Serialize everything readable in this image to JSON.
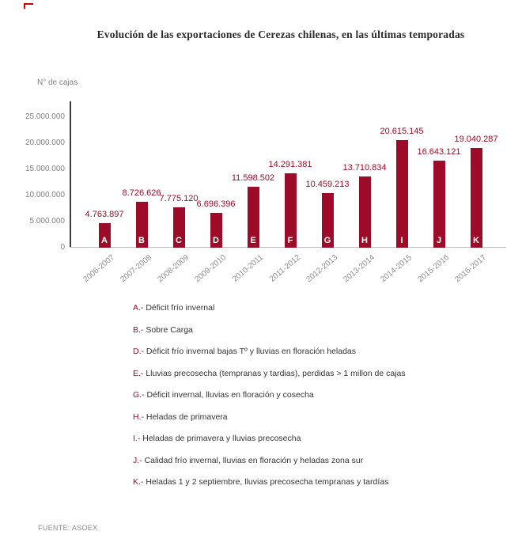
{
  "page": {
    "title": "Evolución de las exportaciones de Cerezas chilenas, en las últimas temporadas",
    "source": "FUENTE: ASOEX"
  },
  "colors": {
    "bar": "#9E0B28",
    "value_label": "#9E0B28",
    "legend_letter": "#9E0B28",
    "legend_text": "#333333",
    "axis_text": "#808080",
    "corner_mark": "#CC0000"
  },
  "chart_data": {
    "type": "bar",
    "title": "Evolución de las exportaciones de Cerezas chilenas, en las últimas temporadas",
    "xlabel": "",
    "ylabel": "N° de cajas",
    "ylim": [
      0,
      25000000
    ],
    "grid": false,
    "legend_position": "below",
    "categories": [
      "2006-2007",
      "2007-2008",
      "2008-2009",
      "2009-2010",
      "2010-2011",
      "2011-2012",
      "2012-2013",
      "2013-2014",
      "2014-2015",
      "2015-2016",
      "2016-2017"
    ],
    "values": [
      4763897,
      8726626,
      7775120,
      6696396,
      11598502,
      14291381,
      10459213,
      13710834,
      20615145,
      16643121,
      19040287
    ],
    "value_labels": [
      "4.763.897",
      "8.726.626",
      "7.775.120",
      "6.696.396",
      "11.598.502",
      "14.291.381",
      "10.459.213",
      "13.710.834",
      "20.615.145",
      "16.643.121",
      "19.040.287"
    ],
    "bar_letters": [
      "A",
      "B",
      "C",
      "D",
      "E",
      "F",
      "G",
      "H",
      "I",
      "J",
      "K"
    ],
    "ytick_values": [
      25000000,
      20000000,
      15000000,
      10000000,
      5000000,
      0
    ],
    "ytick_labels": [
      "25.000.000",
      "20.000.000",
      "15.000.000",
      "10.000.000",
      "5.000.000",
      "0"
    ]
  },
  "legend": {
    "items": [
      {
        "key": "A.-",
        "text": "Déficit frío invernal"
      },
      {
        "key": "B.-",
        "text": "Sobre Carga"
      },
      {
        "key": "D.-",
        "text": "Déficit frío invernal bajas Tº y lluvias en floración heladas"
      },
      {
        "key": "E.-",
        "text": "Lluvias precosecha (tempranas y tardias), perdidas > 1 millon de cajas"
      },
      {
        "key": "G.-",
        "text": "Déficit  invernal, lluvias en floración y cosecha"
      },
      {
        "key": "H.-",
        "text": "Heladas de primavera"
      },
      {
        "key": "I.-",
        "text": "Heladas de primavera y lluvias precosecha"
      },
      {
        "key": "J.-",
        "text": "Calidad frío invernal, lluvias en floración y heladas zona sur"
      },
      {
        "key": "K.-",
        "text": "Heladas 1 y 2 septiembre, lluvias precosecha tempranas y tardías"
      }
    ]
  }
}
